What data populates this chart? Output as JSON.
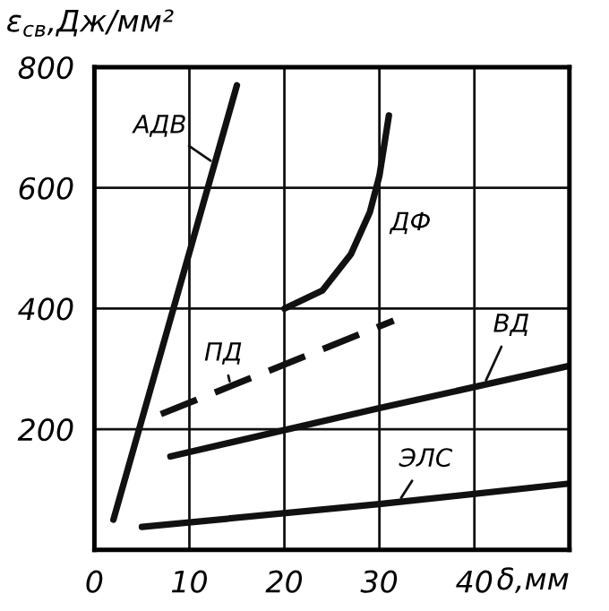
{
  "chart_data": {
    "type": "line",
    "ylabel": "ε$_{св}$,Дж/мм²",
    "xlabel": "δ,мм",
    "xlim": [
      0,
      50
    ],
    "ylim": [
      0,
      800
    ],
    "xticks": [
      0,
      10,
      20,
      30,
      40
    ],
    "yticks": [
      200,
      400,
      600,
      800
    ],
    "grid": true,
    "legend": false,
    "marker": "none",
    "series": [
      {
        "name": "АДВ",
        "color": "#111111",
        "line_style": "solid",
        "x": [
          2,
          15
        ],
        "values": [
          50,
          770
        ]
      },
      {
        "name": "ДФ",
        "color": "#111111",
        "line_style": "solid",
        "x": [
          20,
          24,
          27,
          29,
          30,
          31
        ],
        "values": [
          400,
          430,
          490,
          560,
          620,
          720
        ]
      },
      {
        "name": "ПД",
        "color": "#111111",
        "line_style": "dashed",
        "x": [
          7,
          31.5
        ],
        "values": [
          225,
          380
        ]
      },
      {
        "name": "ВД",
        "color": "#111111",
        "line_style": "solid",
        "x": [
          8,
          30,
          50
        ],
        "values": [
          155,
          235,
          305
        ]
      },
      {
        "name": "ЭЛС",
        "color": "#111111",
        "line_style": "solid",
        "x": [
          5,
          30,
          50
        ],
        "values": [
          38,
          76,
          110
        ]
      }
    ]
  }
}
